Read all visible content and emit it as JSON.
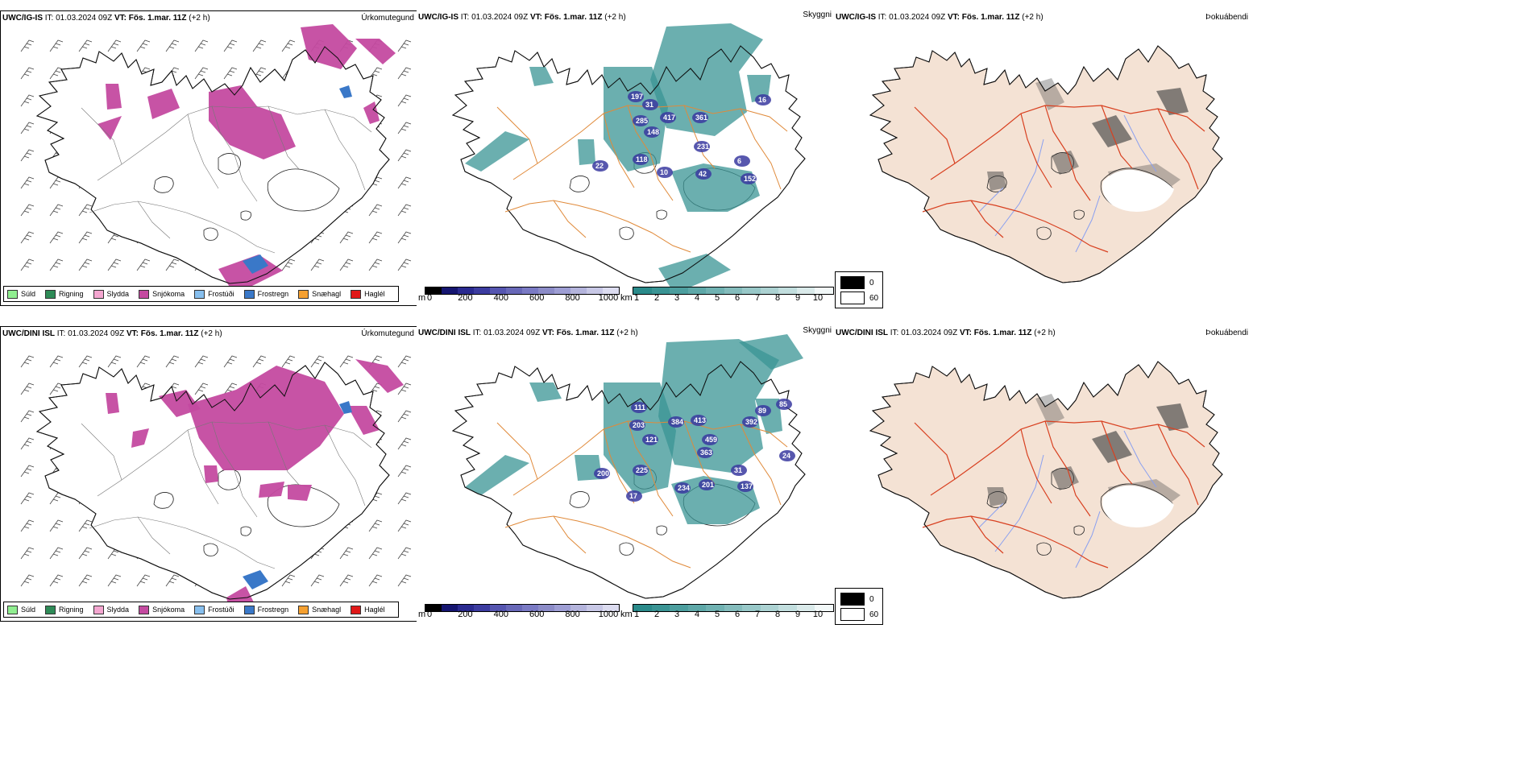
{
  "rows": [
    {
      "model": "UWC/IG-IS",
      "it_label": "IT:",
      "it_value": "01.03.2024 09Z",
      "vt_label": "VT:",
      "vt_value": "Fös. 1.mar. 11Z",
      "lead": "(+2 h)",
      "panel_names": [
        "Úrkomutegund",
        "Skyggni",
        "Þokuábendi"
      ],
      "cloud_labels": [
        "197",
        "31",
        "417",
        "285",
        "148",
        "361",
        "231",
        "16",
        "22",
        "118",
        "10",
        "42",
        "6",
        "152"
      ]
    },
    {
      "model": "UWC/DINI ISL",
      "it_label": "IT:",
      "it_value": "01.03.2024 09Z",
      "vt_label": "VT:",
      "vt_value": "Fös. 1.mar. 11Z",
      "lead": "(+2 h)",
      "panel_names": [
        "Úrkomutegund",
        "Skyggni",
        "Þokuábendi"
      ],
      "cloud_labels": [
        "111",
        "384",
        "203",
        "121",
        "413",
        "459",
        "363",
        "392",
        "89",
        "85",
        "24",
        "200",
        "225",
        "234",
        "201",
        "31",
        "137",
        "17"
      ]
    }
  ],
  "precip_legend": [
    {
      "label": "Súld",
      "color": "#90ee90"
    },
    {
      "label": "Rigning",
      "color": "#2e8b57"
    },
    {
      "label": "Slydda",
      "color": "#f4a6d0"
    },
    {
      "label": "Snjókoma",
      "color": "#c44aa0"
    },
    {
      "label": "Frostúði",
      "color": "#87bfee"
    },
    {
      "label": "Frostregn",
      "color": "#3a78c8"
    },
    {
      "label": "Snæhagl",
      "color": "#f5a030"
    },
    {
      "label": "Haglél",
      "color": "#e01818"
    }
  ],
  "cloudbase_bar": {
    "unit": "m",
    "ticks": [
      "0",
      "200",
      "400",
      "600",
      "800",
      "1000"
    ],
    "colors": [
      "#000000",
      "#151570",
      "#2a2a90",
      "#3c3ca0",
      "#5555b0",
      "#6868b8",
      "#7a7ac4",
      "#8c8cc8",
      "#9e9ed4",
      "#b4b4dc",
      "#c8c8e6",
      "#dcdcf0"
    ]
  },
  "visibility_bar": {
    "unit": "km",
    "ticks": [
      "1",
      "2",
      "3",
      "4",
      "5",
      "6",
      "7",
      "8",
      "9",
      "10"
    ],
    "colors": [
      "#2a8a8a",
      "#3a9494",
      "#4c9e9e",
      "#5ea8a8",
      "#70b2b2",
      "#84bcbc",
      "#98c8c8",
      "#acd2d2",
      "#c2dede",
      "#daeaea",
      "#f2f8f8"
    ]
  },
  "fog_legend": {
    "values": [
      "0",
      "60"
    ],
    "colors": [
      "#000000",
      "#ffffff"
    ]
  },
  "colors": {
    "snow": "#c44aa0",
    "vis_teal": "#3a9494",
    "roads_orange": "#e08a3a",
    "roads_red": "#d84020",
    "land_fog": "#f4e2d4",
    "rivers": "#8aa0f0"
  }
}
